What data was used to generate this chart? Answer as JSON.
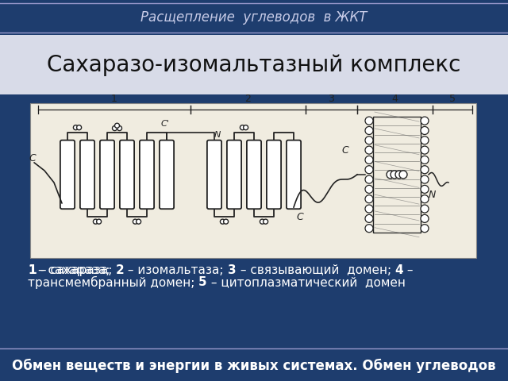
{
  "top_header_text": "Расщепление  углеводов  в ЖКТ",
  "top_header_bg": "#1e3d6e",
  "top_header_color": "#c8cce8",
  "title_text": "Сахаразо-изомальтазный комплекс",
  "title_color": "#111111",
  "title_fontsize": 20,
  "bottom_header_text": "Обмен веществ и энергии в живых системах. Обмен углеводов",
  "bottom_header_bg": "#1e3d6e",
  "bottom_header_color": "#ffffff",
  "body_bg": "#1e3d6e",
  "image_area_bg": "#f0ece0",
  "caption_line1": "1 – сахараза; 2 – изомальтаза; 3 – связывающий  домен; 4 –",
  "caption_line2": "трансмембранный домен; 5 – цитоплазматический  домен",
  "caption_bold_parts": [
    "1",
    "2",
    "3",
    "4",
    "5"
  ],
  "caption_color": "#ffffff",
  "caption_fontsize": 11
}
